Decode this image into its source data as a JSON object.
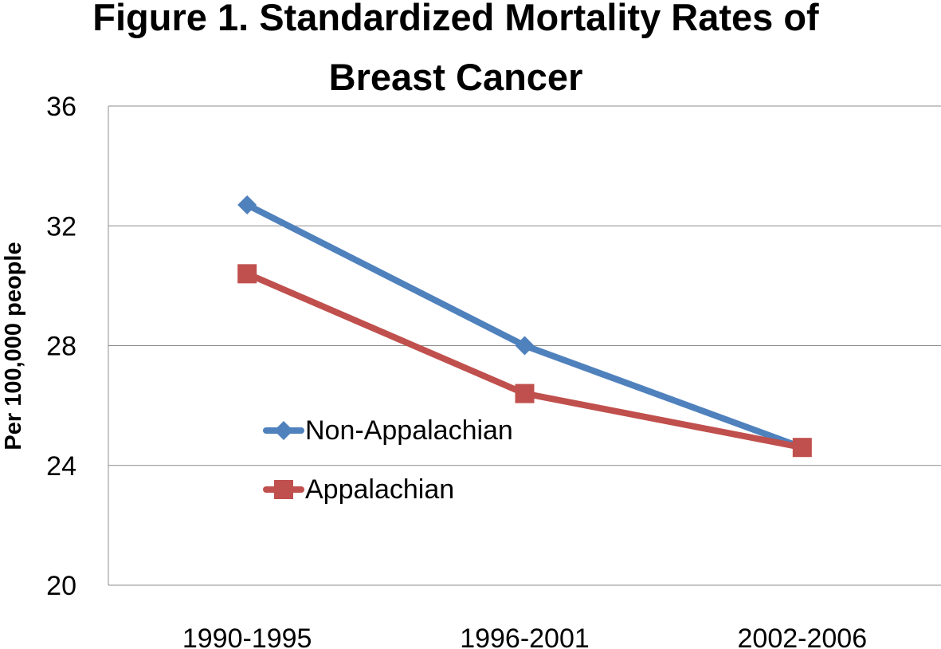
{
  "chart_data": {
    "type": "line",
    "title_line1": "Figure 1. Standardized Mortality Rates of",
    "title_line2": "Breast Cancer",
    "xlabel": "",
    "ylabel": "Per 100,000 people",
    "categories": [
      "1990-1995",
      "1996-2001",
      "2002-2006"
    ],
    "ylim": [
      20,
      36
    ],
    "yticks": [
      20,
      24,
      28,
      32,
      36
    ],
    "grid": true,
    "legend_position": "center-left",
    "series": [
      {
        "name": "Non-Appalachian",
        "values": [
          32.7,
          28.0,
          24.6
        ],
        "color": "#4F81BD",
        "marker": "diamond"
      },
      {
        "name": "Appalachian",
        "values": [
          30.4,
          26.4,
          24.6
        ],
        "color": "#C0504D",
        "marker": "square"
      }
    ]
  }
}
